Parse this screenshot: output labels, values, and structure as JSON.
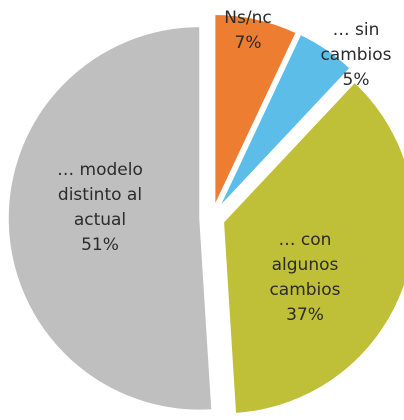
{
  "chart_data": {
    "type": "pie",
    "categories": [
      "Ns/nc",
      "… sin cambios",
      "… con algunos cambios",
      "… modelo distinto al actual"
    ],
    "values": [
      7,
      5,
      37,
      51
    ],
    "value_labels": [
      "7%",
      "5%",
      "37%",
      "51%"
    ],
    "colors": [
      "#ed7d31",
      "#5bbde8",
      "#c0bf38",
      "#bfbfbf"
    ],
    "exploded": true
  }
}
